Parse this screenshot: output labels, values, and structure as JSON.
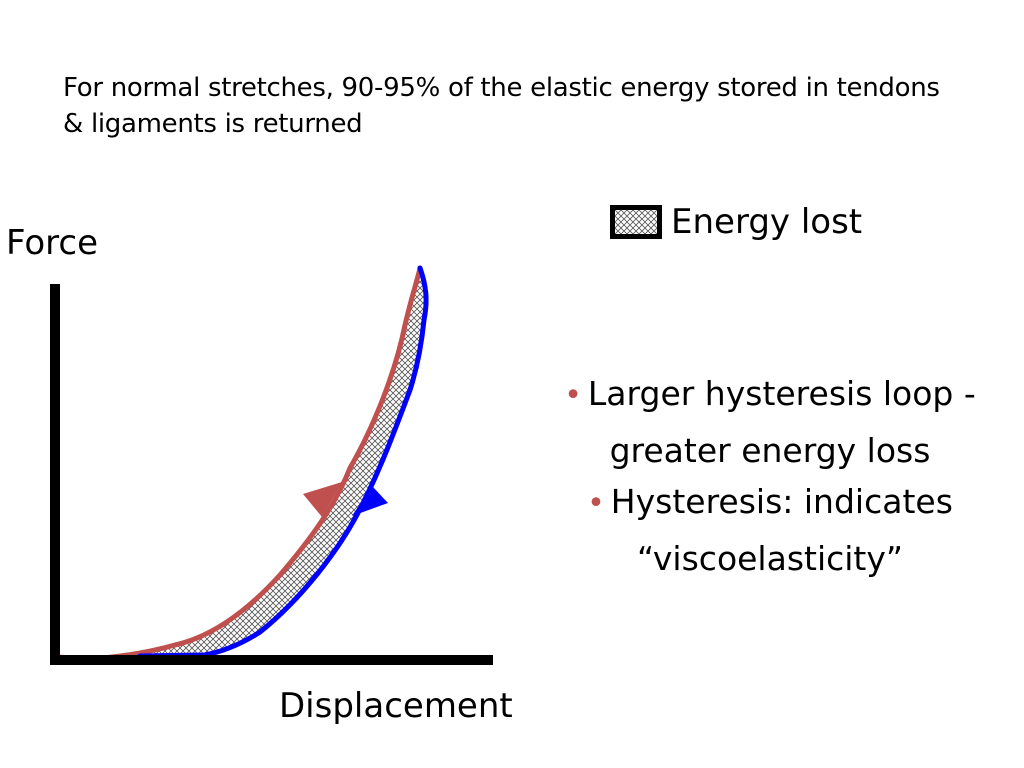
{
  "heading": "For normal stretches, 90-95% of the elastic energy stored in tendons & ligaments is returned",
  "y_axis_label": "Force",
  "x_axis_label": "Displacement",
  "legend": {
    "label": "Energy lost",
    "pattern": "cross-hatch"
  },
  "bullets": [
    {
      "line1": "Larger hysteresis loop -",
      "line2": "greater energy loss"
    },
    {
      "line1": "Hysteresis: indicates",
      "line2": "“viscoelasticity”"
    }
  ],
  "colors": {
    "loading_curve": "#c0504d",
    "unloading_curve": "#0000ff",
    "axes": "#000000",
    "bullet": "#c0504d"
  }
}
